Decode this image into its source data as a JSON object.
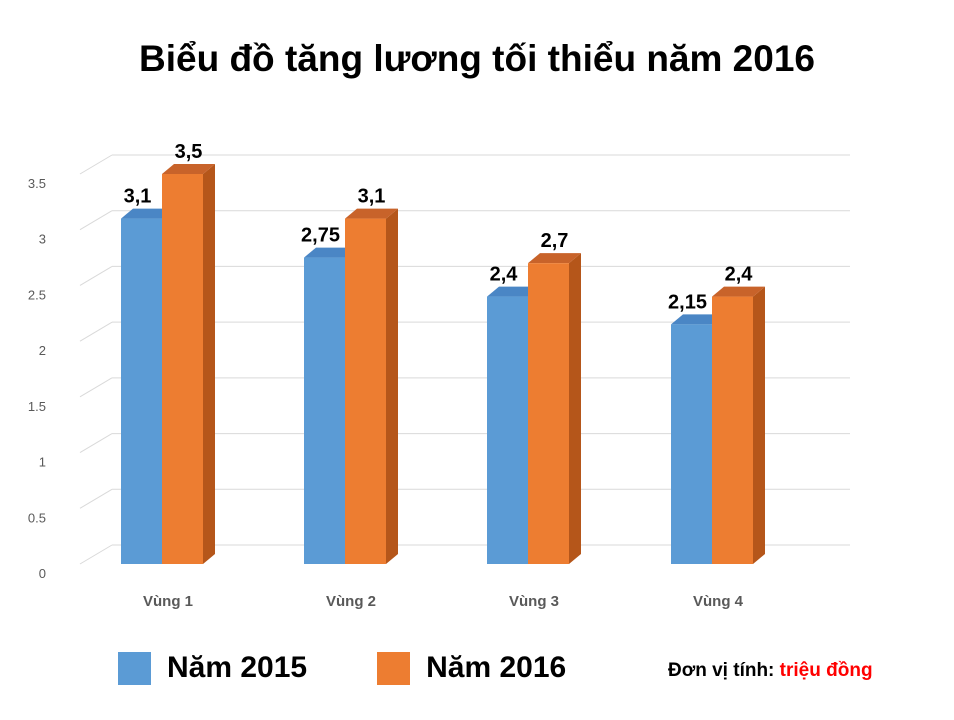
{
  "chart_data": {
    "type": "bar",
    "title": "Biểu đồ tăng lương tối thiểu năm 2016",
    "categories": [
      "Vùng 1",
      "Vùng 2",
      "Vùng  3",
      "Vùng 4"
    ],
    "series": [
      {
        "name": "Năm 2015",
        "values": [
          3.1,
          2.75,
          2.4,
          2.15
        ],
        "labels": [
          "3,1",
          "2,75",
          "2,4",
          "2,15"
        ],
        "color": "#5b9bd5"
      },
      {
        "name": "Năm 2016",
        "values": [
          3.5,
          3.1,
          2.7,
          2.4
        ],
        "labels": [
          "3,5",
          "3,1",
          "2,7",
          "2,4"
        ],
        "color": "#ed7d31"
      }
    ],
    "yticks": [
      "0",
      "0.5",
      "1",
      "1.5",
      "2",
      "2.5",
      "3",
      "3.5"
    ],
    "ylim": [
      0,
      3.5
    ],
    "grid": true,
    "legend_position": "bottom",
    "unit_label": "Đơn vị tính:",
    "unit_value": "triệu đồng"
  }
}
